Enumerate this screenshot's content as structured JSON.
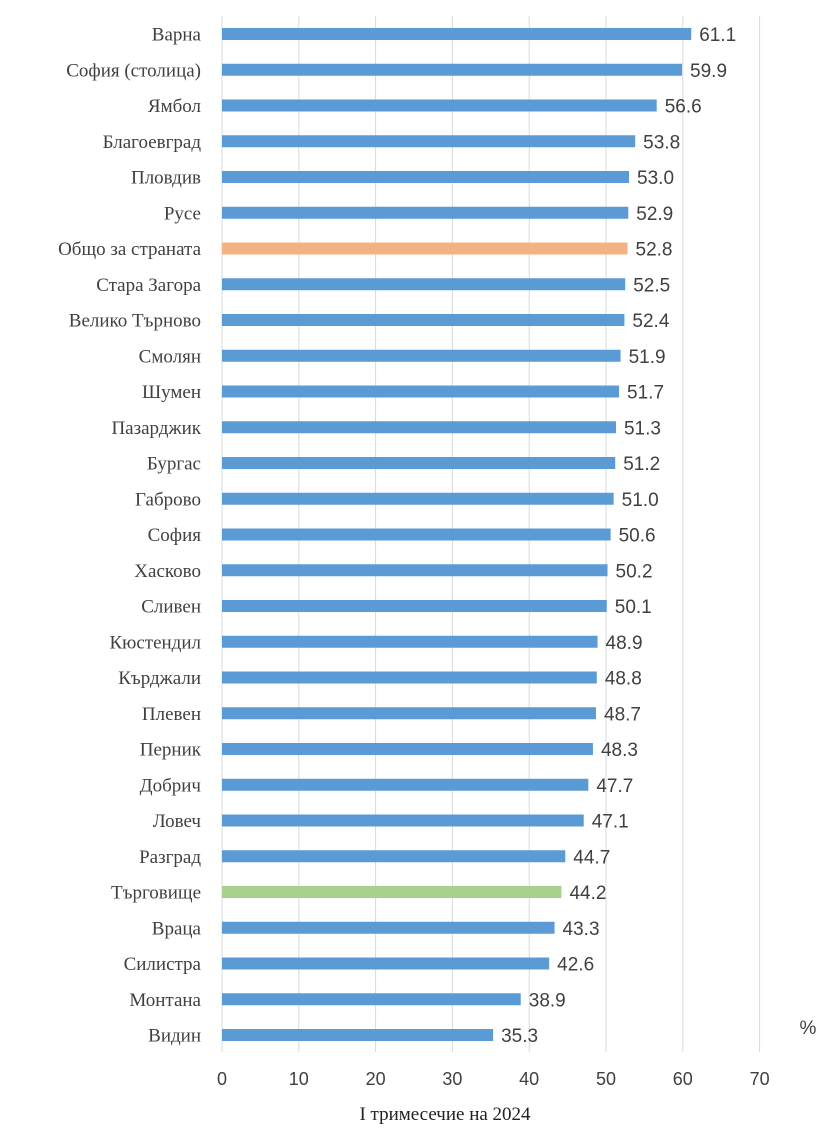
{
  "chart_data": {
    "type": "bar",
    "orientation": "horizontal",
    "xlabel": "I тримесечие на 2024",
    "unit": "%",
    "xlim": [
      0,
      70
    ],
    "xticks": [
      0,
      10,
      20,
      30,
      40,
      50,
      60,
      70
    ],
    "grid": true,
    "legend": "none",
    "colors": {
      "default": "#5b9bd5",
      "national": "#f4b183",
      "highlight": "#a9d18e"
    },
    "categories": [
      "Варна",
      "София (столица)",
      "Ямбол",
      "Благоевград",
      "Пловдив",
      "Русе",
      "Общо за страната",
      "Стара Загора",
      "Велико Търново",
      "Смолян",
      "Шумен",
      "Пазарджик",
      "Бургас",
      "Габрово",
      "София",
      "Хасково",
      "Сливен",
      "Кюстендил",
      "Кърджали",
      "Плевен",
      "Перник",
      "Добрич",
      "Ловеч",
      "Разград",
      "Търговище",
      "Враца",
      "Силистра",
      "Монтана",
      "Видин"
    ],
    "values": [
      61.1,
      59.9,
      56.6,
      53.8,
      53.0,
      52.9,
      52.8,
      52.5,
      52.4,
      51.9,
      51.7,
      51.3,
      51.2,
      51.0,
      50.6,
      50.2,
      50.1,
      48.9,
      48.8,
      48.7,
      48.3,
      47.7,
      47.1,
      44.7,
      44.2,
      43.3,
      42.6,
      38.9,
      35.3
    ],
    "value_labels": [
      "61.1",
      "59.9",
      "56.6",
      "53.8",
      "53.0",
      "52.9",
      "52.8",
      "52.5",
      "52.4",
      "51.9",
      "51.7",
      "51.3",
      "51.2",
      "51.0",
      "50.6",
      "50.2",
      "50.1",
      "48.9",
      "48.8",
      "48.7",
      "48.3",
      "47.7",
      "47.1",
      "44.7",
      "44.2",
      "43.3",
      "42.6",
      "38.9",
      "35.3"
    ],
    "bar_color_keys": [
      "default",
      "default",
      "default",
      "default",
      "default",
      "default",
      "national",
      "default",
      "default",
      "default",
      "default",
      "default",
      "default",
      "default",
      "default",
      "default",
      "default",
      "default",
      "default",
      "default",
      "default",
      "default",
      "default",
      "default",
      "highlight",
      "default",
      "default",
      "default",
      "default"
    ]
  }
}
